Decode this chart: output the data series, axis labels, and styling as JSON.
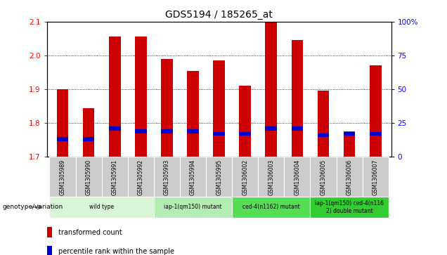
{
  "title": "GDS5194 / 185265_at",
  "samples": [
    "GSM1305989",
    "GSM1305990",
    "GSM1305991",
    "GSM1305992",
    "GSM1305993",
    "GSM1305994",
    "GSM1305995",
    "GSM1306002",
    "GSM1306003",
    "GSM1306004",
    "GSM1306005",
    "GSM1306006",
    "GSM1306007"
  ],
  "transformed_count": [
    1.9,
    1.845,
    2.055,
    2.055,
    1.99,
    1.955,
    1.985,
    1.91,
    2.1,
    2.045,
    1.895,
    1.775,
    1.97
  ],
  "percentile_rank_pct": [
    13,
    13,
    21,
    19,
    19,
    19,
    17,
    17,
    21,
    21,
    16,
    17,
    17
  ],
  "bar_bottom": 1.7,
  "ylim_left": [
    1.7,
    2.1
  ],
  "ylim_right": [
    0,
    100
  ],
  "yticks_left": [
    1.7,
    1.8,
    1.9,
    2.0,
    2.1
  ],
  "yticks_right": [
    0,
    25,
    50,
    75,
    100
  ],
  "groups": [
    {
      "label": "wild type",
      "start": 0,
      "end": 3,
      "color": "#d8f5d8"
    },
    {
      "label": "iap-1(qm150) mutant",
      "start": 4,
      "end": 6,
      "color": "#b3edb3"
    },
    {
      "label": "ced-4(n1162) mutant",
      "start": 7,
      "end": 9,
      "color": "#55dd55"
    },
    {
      "label": "iap-1(qm150) ced-4(n116\n2) double mutant",
      "start": 10,
      "end": 12,
      "color": "#33cc33"
    }
  ],
  "bar_color_red": "#cc0000",
  "bar_color_blue": "#0000cc",
  "table_bg": "#cccccc",
  "legend_red": "transformed count",
  "legend_blue": "percentile rank within the sample",
  "genotype_label": "genotype/variation"
}
